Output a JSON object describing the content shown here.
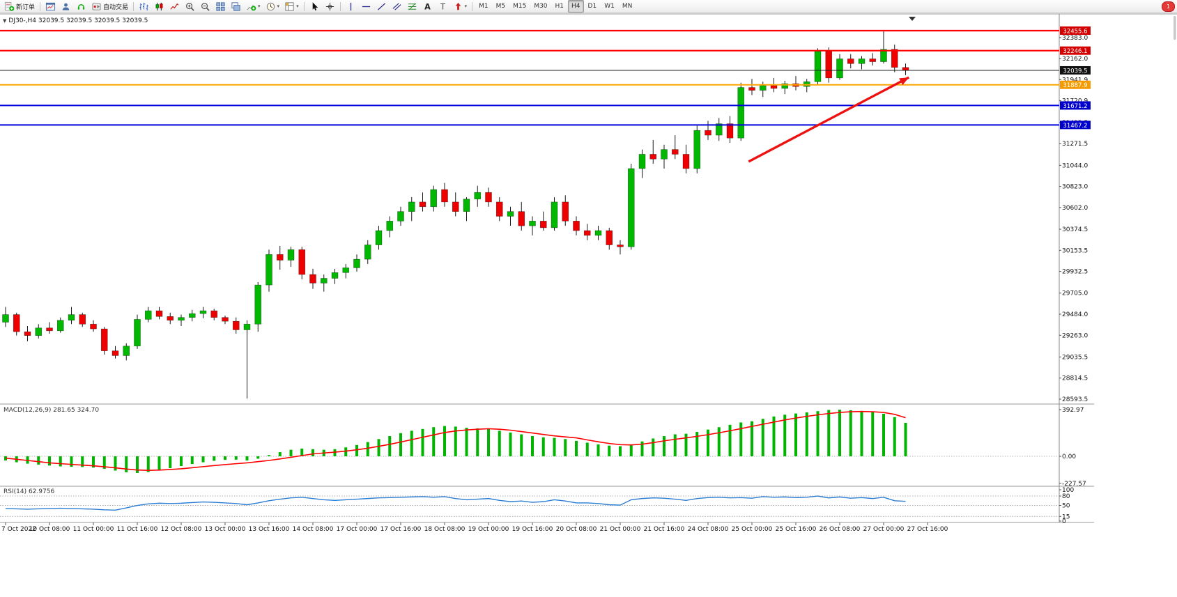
{
  "toolbar": {
    "groups": [
      {
        "items": [
          {
            "name": "new-order",
            "icon": "new-order-icon",
            "label": "新订单"
          }
        ]
      },
      {
        "items": [
          {
            "name": "charts-window",
            "icon": "chart-window-icon"
          },
          {
            "name": "market-watch",
            "icon": "profile-icon"
          },
          {
            "name": "data-window",
            "icon": "headset-icon"
          },
          {
            "name": "autotrading",
            "icon": "autotrade-icon",
            "label": "自动交易"
          }
        ]
      },
      {
        "items": [
          {
            "name": "bar-chart-mode",
            "icon": "bar-chart-icon"
          },
          {
            "name": "candlestick-mode",
            "icon": "candlestick-icon"
          },
          {
            "name": "line-chart-mode",
            "icon": "line-chart-icon"
          },
          {
            "name": "zoom-in",
            "icon": "zoom-in-icon"
          },
          {
            "name": "zoom-out",
            "icon": "zoom-out-icon"
          },
          {
            "name": "tile-windows",
            "icon": "tile-windows-icon"
          },
          {
            "name": "cascade-windows",
            "icon": "cascade-windows-icon"
          },
          {
            "name": "indicators",
            "icon": "indicators-icon",
            "caret": true
          },
          {
            "name": "periods",
            "icon": "periods-icon",
            "caret": true
          },
          {
            "name": "templates",
            "icon": "templates-icon",
            "caret": true
          }
        ]
      },
      {
        "items": [
          {
            "name": "cursor",
            "icon": "cursor-icon"
          },
          {
            "name": "crosshair",
            "icon": "crosshair-icon"
          }
        ]
      },
      {
        "items": [
          {
            "name": "vertical-line",
            "icon": "vertical-line-icon"
          },
          {
            "name": "horizontal-line",
            "icon": "horizontal-line-icon"
          },
          {
            "name": "trendline",
            "icon": "trendline-icon"
          },
          {
            "name": "equidistant-channel",
            "icon": "channel-icon"
          },
          {
            "name": "fibonacci",
            "icon": "fibonacci-icon"
          },
          {
            "name": "text",
            "icon": "text-icon"
          },
          {
            "name": "text-label",
            "icon": "label-icon"
          },
          {
            "name": "arrows",
            "icon": "arrows-icon",
            "caret": true
          }
        ]
      }
    ],
    "timeframes": [
      "M1",
      "M5",
      "M15",
      "M30",
      "H1",
      "H4",
      "D1",
      "W1",
      "MN"
    ],
    "active_timeframe": "H4",
    "notification_badge": "1"
  },
  "chart_data": {
    "type": "candlestick",
    "symbol": "DJ30-",
    "period": "H4",
    "header": "DJ30-,H4  32039.5 32039.5 32039.5 32039.5",
    "current_bid": 32039.5,
    "colors": {
      "up": "#00b800",
      "down": "#ee0000",
      "wick": "#1a1a1a",
      "macd_hist": "#00b400",
      "macd_signal": "#ff0000",
      "rsi_line": "#2b7cd3"
    },
    "y_range": [
      28557,
      32616
    ],
    "price_axis_ticks": [
      32383.0,
      32162.0,
      31941.9,
      31720.9,
      31492.5,
      31271.5,
      31044.0,
      30823.0,
      30602.0,
      30374.5,
      30153.5,
      29932.5,
      29705.0,
      29484.0,
      29263.0,
      29035.5,
      28814.5,
      28593.5
    ],
    "hlines": [
      {
        "price": 32455.6,
        "color": "#ff0000",
        "width": 2.2,
        "tag": "32455.6",
        "tag_bg": "#d40000"
      },
      {
        "price": 32246.1,
        "color": "#ff0000",
        "width": 2.2,
        "tag": "32246.1",
        "tag_bg": "#d40000"
      },
      {
        "price": 32039.5,
        "color": "#222222",
        "width": 1,
        "tag": "32039.5",
        "tag_bg": "#111111"
      },
      {
        "price": 31887.9,
        "color": "#ffa500",
        "width": 2,
        "tag": "31887.9",
        "tag_bg": "#f59a00"
      },
      {
        "price": 31671.2,
        "color": "#0000dd",
        "width": 2,
        "tag": "31671.2",
        "tag_bg": "#0000cc"
      },
      {
        "price": 31467.2,
        "color": "#0000dd",
        "width": 2,
        "tag": "31467.2",
        "tag_bg": "#0000cc"
      }
    ],
    "trend_arrow": {
      "from_bar": 67.7,
      "from_price": 31083,
      "to_bar": 82.3,
      "to_price": 31965,
      "color": "#ee1111"
    },
    "time_label_every_n_bars": 4,
    "time_labels": [
      "7 Oct 2022",
      "10 Oct 08:00",
      "11 Oct 00:00",
      "11 Oct 16:00",
      "12 Oct 08:00",
      "13 Oct 00:00",
      "13 Oct 16:00",
      "14 Oct 08:00",
      "17 Oct 00:00",
      "17 Oct 16:00",
      "18 Oct 08:00",
      "19 Oct 00:00",
      "19 Oct 16:00",
      "20 Oct 08:00",
      "21 Oct 00:00",
      "21 Oct 16:00",
      "24 Oct 08:00",
      "25 Oct 00:00",
      "25 Oct 16:00",
      "26 Oct 08:00",
      "27 Oct 00:00",
      "27 Oct 16:00"
    ],
    "candles": [
      [
        29400,
        29560,
        29350,
        29480
      ],
      [
        29480,
        29500,
        29260,
        29300
      ],
      [
        29300,
        29360,
        29200,
        29260
      ],
      [
        29260,
        29380,
        29230,
        29340
      ],
      [
        29340,
        29400,
        29280,
        29310
      ],
      [
        29310,
        29450,
        29290,
        29420
      ],
      [
        29420,
        29560,
        29380,
        29480
      ],
      [
        29480,
        29500,
        29350,
        29380
      ],
      [
        29380,
        29420,
        29300,
        29330
      ],
      [
        29330,
        29350,
        29060,
        29100
      ],
      [
        29100,
        29150,
        29020,
        29050
      ],
      [
        29050,
        29180,
        29000,
        29150
      ],
      [
        29150,
        29480,
        29120,
        29430
      ],
      [
        29430,
        29560,
        29400,
        29520
      ],
      [
        29520,
        29560,
        29430,
        29460
      ],
      [
        29460,
        29500,
        29380,
        29420
      ],
      [
        29420,
        29480,
        29360,
        29450
      ],
      [
        29450,
        29530,
        29410,
        29490
      ],
      [
        29490,
        29560,
        29440,
        29520
      ],
      [
        29520,
        29540,
        29420,
        29450
      ],
      [
        29450,
        29470,
        29380,
        29410
      ],
      [
        29410,
        29450,
        29280,
        29320
      ],
      [
        29320,
        29420,
        28600,
        29380
      ],
      [
        29380,
        29820,
        29300,
        29790
      ],
      [
        29790,
        30160,
        29720,
        30110
      ],
      [
        30110,
        30200,
        29950,
        30050
      ],
      [
        30050,
        30190,
        29980,
        30160
      ],
      [
        30160,
        30190,
        29850,
        29900
      ],
      [
        29900,
        29960,
        29750,
        29810
      ],
      [
        29810,
        29900,
        29720,
        29860
      ],
      [
        29860,
        29960,
        29800,
        29920
      ],
      [
        29920,
        30010,
        29860,
        29970
      ],
      [
        29970,
        30110,
        29930,
        30060
      ],
      [
        30060,
        30260,
        30010,
        30210
      ],
      [
        30210,
        30410,
        30160,
        30360
      ],
      [
        30360,
        30510,
        30290,
        30460
      ],
      [
        30460,
        30610,
        30410,
        30560
      ],
      [
        30560,
        30710,
        30460,
        30660
      ],
      [
        30660,
        30760,
        30560,
        30610
      ],
      [
        30610,
        30830,
        30560,
        30790
      ],
      [
        30790,
        30860,
        30610,
        30660
      ],
      [
        30660,
        30760,
        30510,
        30560
      ],
      [
        30560,
        30710,
        30460,
        30690
      ],
      [
        30690,
        30830,
        30610,
        30760
      ],
      [
        30760,
        30810,
        30610,
        30660
      ],
      [
        30660,
        30710,
        30460,
        30510
      ],
      [
        30510,
        30610,
        30410,
        30560
      ],
      [
        30560,
        30660,
        30360,
        30410
      ],
      [
        30410,
        30510,
        30310,
        30460
      ],
      [
        30460,
        30560,
        30360,
        30390
      ],
      [
        30390,
        30710,
        30360,
        30660
      ],
      [
        30660,
        30730,
        30410,
        30460
      ],
      [
        30460,
        30510,
        30310,
        30360
      ],
      [
        30360,
        30430,
        30260,
        30310
      ],
      [
        30310,
        30410,
        30260,
        30360
      ],
      [
        30360,
        30390,
        30160,
        30210
      ],
      [
        30210,
        30260,
        30110,
        30190
      ],
      [
        30190,
        31060,
        30160,
        31010
      ],
      [
        31010,
        31210,
        30910,
        31160
      ],
      [
        31160,
        31310,
        31060,
        31110
      ],
      [
        31110,
        31260,
        31010,
        31210
      ],
      [
        31210,
        31360,
        31110,
        31160
      ],
      [
        31160,
        31260,
        30960,
        31010
      ],
      [
        31010,
        31460,
        30960,
        31410
      ],
      [
        31410,
        31510,
        31310,
        31360
      ],
      [
        31360,
        31540,
        31300,
        31480
      ],
      [
        31480,
        31560,
        31280,
        31330
      ],
      [
        31330,
        31910,
        31300,
        31860
      ],
      [
        31860,
        31950,
        31780,
        31830
      ],
      [
        31830,
        31920,
        31760,
        31880
      ],
      [
        31880,
        31960,
        31810,
        31850
      ],
      [
        31850,
        31930,
        31790,
        31900
      ],
      [
        31900,
        31980,
        31830,
        31870
      ],
      [
        31870,
        31950,
        31810,
        31920
      ],
      [
        31920,
        32270,
        31890,
        32240
      ],
      [
        32240,
        32280,
        31910,
        31960
      ],
      [
        31960,
        32210,
        31940,
        32160
      ],
      [
        32160,
        32210,
        32060,
        32110
      ],
      [
        32110,
        32190,
        32050,
        32160
      ],
      [
        32160,
        32220,
        32090,
        32130
      ],
      [
        32130,
        32455,
        32110,
        32260
      ],
      [
        32260,
        32310,
        32020,
        32070
      ],
      [
        32070,
        32110,
        31990,
        32039.5
      ]
    ],
    "macd": {
      "name": "MACD(12,26,9)",
      "value": "281.65",
      "signal_value": "324.70",
      "display": "MACD(12,26,9) 281.65 324.70",
      "scale_ticks": [
        392.97,
        0,
        -227.57
      ],
      "y_range": [
        -246,
        434
      ],
      "histogram": [
        -35,
        -50,
        -62,
        -70,
        -78,
        -85,
        -88,
        -90,
        -95,
        -105,
        -120,
        -135,
        -140,
        -132,
        -118,
        -100,
        -82,
        -65,
        -50,
        -38,
        -30,
        -28,
        -35,
        -20,
        10,
        35,
        55,
        65,
        60,
        55,
        60,
        75,
        95,
        120,
        145,
        170,
        195,
        215,
        230,
        245,
        255,
        250,
        240,
        235,
        230,
        215,
        200,
        185,
        170,
        160,
        155,
        145,
        130,
        115,
        100,
        90,
        85,
        100,
        125,
        150,
        170,
        185,
        190,
        205,
        225,
        245,
        265,
        285,
        295,
        315,
        335,
        350,
        360,
        370,
        380,
        390,
        392,
        388,
        382,
        372,
        358,
        330,
        281.65
      ],
      "signal": [
        -15,
        -25,
        -35,
        -45,
        -55,
        -62,
        -68,
        -74,
        -80,
        -88,
        -97,
        -107,
        -115,
        -118,
        -116,
        -111,
        -105,
        -96,
        -87,
        -78,
        -70,
        -62,
        -55,
        -45,
        -35,
        -22,
        -8,
        6,
        20,
        28,
        35,
        44,
        55,
        68,
        84,
        101,
        120,
        140,
        160,
        180,
        200,
        213,
        222,
        228,
        232,
        228,
        220,
        208,
        196,
        184,
        172,
        163,
        155,
        138,
        122,
        108,
        98,
        96,
        102,
        115,
        130,
        143,
        155,
        168,
        182,
        198,
        215,
        233,
        252,
        270,
        288,
        306,
        322,
        336,
        349,
        360,
        369,
        375,
        377,
        375,
        369,
        353,
        324.7
      ]
    },
    "rsi": {
      "name": "RSI(14)",
      "value": "62.9756",
      "display": "RSI(14) 62.9756",
      "scale_ticks": [
        100,
        80,
        50,
        15,
        0
      ],
      "levels": [
        80,
        50,
        15
      ],
      "y_range": [
        0,
        109
      ],
      "values": [
        40,
        39,
        38,
        39,
        40,
        41,
        40,
        39,
        38,
        36,
        35,
        42,
        50,
        55,
        57,
        56,
        57,
        59,
        61,
        60,
        58,
        56,
        52,
        58,
        65,
        70,
        74,
        76,
        72,
        68,
        66,
        68,
        70,
        72,
        74,
        75,
        76,
        77,
        78,
        76,
        78,
        72,
        68,
        70,
        72,
        66,
        62,
        64,
        60,
        62,
        68,
        64,
        58,
        58,
        56,
        52,
        51,
        68,
        72,
        74,
        73,
        70,
        66,
        72,
        75,
        76,
        74,
        75,
        73,
        78,
        76,
        77,
        75,
        76,
        80,
        74,
        77,
        73,
        75,
        72,
        76,
        65,
        62.98
      ]
    }
  }
}
